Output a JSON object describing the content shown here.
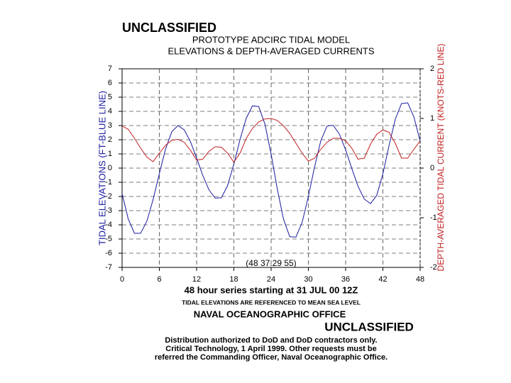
{
  "chart_data": {
    "type": "line",
    "classification_top": "UNCLASSIFIED",
    "title": "PROTOTYPE ADCIRC TIDAL MODEL",
    "subtitle": "ELEVATIONS & DEPTH-AVERAGED CURRENTS",
    "ylabel": "TIDAL ELEVATIONS (FT-BLUE LINE)",
    "y2label": "DEPTH-AVERAGED TIDAL CURRENT (KNOTS-RED LINE)",
    "xlabel": "48 hour series starting at 31 JUL 00 12Z",
    "annotation": "(48 37.29 55)",
    "note": "TIDAL ELEVATIONS ARE REFERENCED TO MEAN SEA LEVEL",
    "office": "NAVAL OCEANOGRAPHIC OFFICE",
    "classification_bottom": "UNCLASSIFIED",
    "distribution": [
      "Distribution authorized to DoD and DoD contractors only.",
      "Critical Technology, 1 April 1999. Other requests must be",
      "referred the Commanding Officer, Naval Oceanographic Office."
    ],
    "x": [
      0,
      1,
      2,
      3,
      4,
      5,
      6,
      7,
      8,
      9,
      10,
      11,
      12,
      13,
      14,
      15,
      16,
      17,
      18,
      19,
      20,
      21,
      22,
      23,
      24,
      25,
      26,
      27,
      28,
      29,
      30,
      31,
      32,
      33,
      34,
      35,
      36,
      37,
      38,
      39,
      40,
      41,
      42,
      43,
      44,
      45,
      46,
      47,
      48
    ],
    "series": [
      {
        "color": "#1a1aa0",
        "axis": "y",
        "values": [
          -1.8,
          -3.6,
          -4.6,
          -4.59,
          -3.73,
          -2.21,
          -0.39,
          1.34,
          2.56,
          3.0,
          2.7,
          1.88,
          0.71,
          -0.52,
          -1.54,
          -2.12,
          -2.09,
          -1.22,
          0.28,
          2.02,
          3.52,
          4.39,
          4.34,
          3.11,
          0.98,
          -1.48,
          -3.61,
          -4.84,
          -4.86,
          -3.82,
          -2.0,
          0.09,
          1.92,
          2.96,
          3.02,
          2.39,
          1.29,
          -0.04,
          -1.29,
          -2.18,
          -2.5,
          -1.93,
          -0.4,
          1.61,
          3.45,
          4.55,
          4.6,
          3.6,
          1.9
        ]
      },
      {
        "color": "#c02020",
        "axis": "y2",
        "values": [
          0.85,
          0.78,
          0.6,
          0.4,
          0.22,
          0.13,
          0.3,
          0.46,
          0.56,
          0.58,
          0.52,
          0.36,
          0.16,
          0.18,
          0.34,
          0.43,
          0.42,
          0.3,
          0.12,
          0.3,
          0.6,
          0.8,
          0.93,
          0.99,
          1.0,
          0.96,
          0.85,
          0.7,
          0.5,
          0.3,
          0.14,
          0.2,
          0.38,
          0.52,
          0.6,
          0.6,
          0.55,
          0.4,
          0.18,
          0.2,
          0.48,
          0.68,
          0.77,
          0.72,
          0.5,
          0.2,
          0.2,
          0.38,
          0.55
        ]
      }
    ],
    "xlim": [
      0,
      48
    ],
    "xticks": [
      0,
      6,
      12,
      18,
      24,
      30,
      36,
      42,
      48
    ],
    "ylim": [
      -7,
      7
    ],
    "yticks": [
      -7,
      -6,
      -5,
      -4,
      -3,
      -2,
      -1,
      0,
      1,
      2,
      3,
      4,
      5,
      6,
      7
    ],
    "y2lim": [
      -2,
      2
    ],
    "y2ticks": [
      -2,
      -1,
      0,
      1,
      2
    ],
    "grid": true
  }
}
